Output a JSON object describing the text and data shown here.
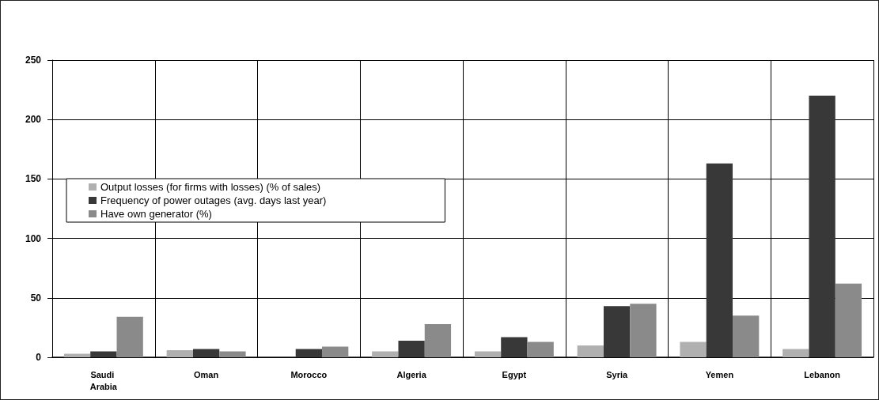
{
  "chart_data": {
    "type": "bar",
    "categories": [
      "Saudi Arabia",
      "Oman",
      "Morocco",
      "Algeria",
      "Egypt",
      "Syria",
      "Yemen",
      "Lebanon"
    ],
    "series": [
      {
        "name": "Output losses (for firms with losses) (% of sales)",
        "color": "#b0b0b0",
        "values": [
          3,
          6,
          null,
          5,
          5,
          10,
          13,
          7
        ]
      },
      {
        "name": "Frequency of power outages (avg. days last year)",
        "color": "#383838",
        "values": [
          5,
          7,
          7,
          14,
          17,
          43,
          163,
          220
        ]
      },
      {
        "name": "Have own generator (%)",
        "color": "#8a8a8a",
        "values": [
          34,
          5,
          9,
          28,
          13,
          45,
          35,
          62
        ]
      }
    ],
    "ylim": [
      0,
      250
    ],
    "yticks": [
      0,
      50,
      100,
      150,
      200,
      250
    ],
    "grid": true,
    "legend": "left"
  }
}
